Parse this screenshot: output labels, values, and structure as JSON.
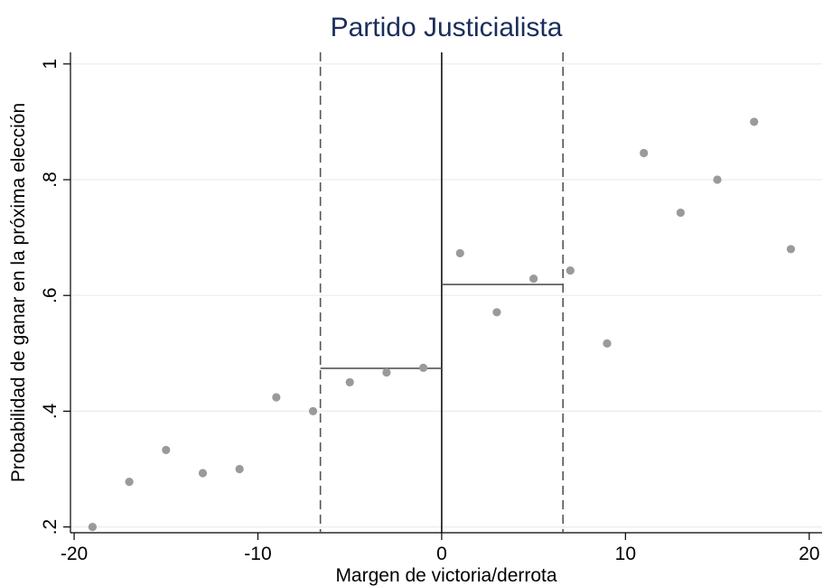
{
  "chart_data": {
    "type": "scatter",
    "title": "Partido Justicialista",
    "xlabel": "Margen de victoria/derrota",
    "ylabel": "Probabilidad de ganar en la próxima elección",
    "xlim": [
      -20.2,
      20.7
    ],
    "ylim": [
      0.19,
      1.02
    ],
    "x_ticks": [
      {
        "value": -20,
        "label": "-20"
      },
      {
        "value": -10,
        "label": "-10"
      },
      {
        "value": 0,
        "label": "0"
      },
      {
        "value": 10,
        "label": "10"
      },
      {
        "value": 20,
        "label": "20"
      }
    ],
    "y_ticks": [
      {
        "value": 0.2,
        "label": ".2"
      },
      {
        "value": 0.4,
        "label": ".4"
      },
      {
        "value": 0.6,
        "label": ".6"
      },
      {
        "value": 0.8,
        "label": ".8"
      },
      {
        "value": 1.0,
        "label": "1"
      }
    ],
    "grid": true,
    "series": [
      {
        "points": [
          {
            "x": -19,
            "y": 0.2
          },
          {
            "x": -17,
            "y": 0.278
          },
          {
            "x": -15,
            "y": 0.333
          },
          {
            "x": -13,
            "y": 0.293
          },
          {
            "x": -11,
            "y": 0.3
          },
          {
            "x": -9,
            "y": 0.424
          },
          {
            "x": -7,
            "y": 0.4
          },
          {
            "x": -5,
            "y": 0.45
          },
          {
            "x": -3,
            "y": 0.467
          },
          {
            "x": -1,
            "y": 0.475
          },
          {
            "x": 1,
            "y": 0.673
          },
          {
            "x": 3,
            "y": 0.571
          },
          {
            "x": 5,
            "y": 0.629
          },
          {
            "x": 7,
            "y": 0.643
          },
          {
            "x": 9,
            "y": 0.517
          },
          {
            "x": 11,
            "y": 0.846
          },
          {
            "x": 13,
            "y": 0.743
          },
          {
            "x": 15,
            "y": 0.8
          },
          {
            "x": 17,
            "y": 0.9
          },
          {
            "x": 19,
            "y": 0.68
          }
        ],
        "color": "#9a9a9a"
      }
    ],
    "cutoff": 0,
    "bandwidth": [
      -6.6,
      6.6
    ],
    "local_means": [
      {
        "from": -6.6,
        "to": 0,
        "y": 0.474
      },
      {
        "from": 0,
        "to": 6.6,
        "y": 0.619
      }
    ]
  }
}
